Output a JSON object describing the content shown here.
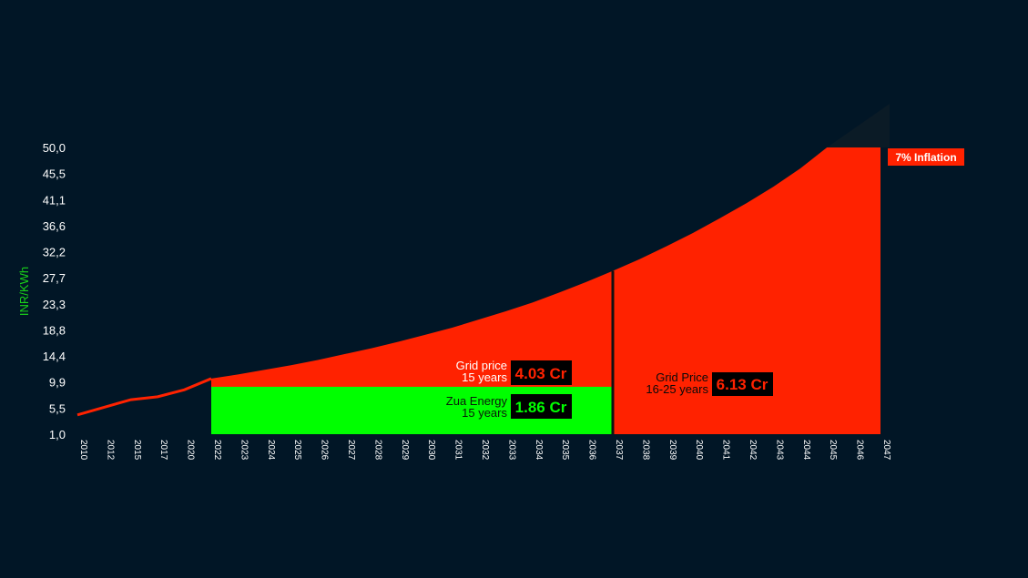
{
  "colors": {
    "background": "#011626",
    "grid_price_area": "#ff2200",
    "zua_area": "#00ff00",
    "line": "#ff2200",
    "divider": "#111111",
    "label_box": "#000000"
  },
  "chart_data": {
    "type": "area",
    "ylabel": "INR/KWh",
    "xlabel": "",
    "ylim": [
      1.0,
      50.0
    ],
    "y_ticks": [
      "1,0",
      "5,5",
      "9,9",
      "14,4",
      "18,8",
      "23,3",
      "27,7",
      "32,2",
      "36,6",
      "41,1",
      "45,5",
      "50,0"
    ],
    "x_ticks": [
      "2010",
      "2012",
      "2015",
      "2017",
      "2020",
      "2022",
      "2023",
      "2024",
      "2025",
      "2026",
      "2027",
      "2028",
      "2029",
      "2030",
      "2031",
      "2032",
      "2033",
      "2034",
      "2035",
      "2036",
      "2037",
      "2038",
      "2039",
      "2040",
      "2041",
      "2042",
      "2043",
      "2044",
      "2045",
      "2046",
      "2047"
    ],
    "historical_line": {
      "name": "",
      "values": [
        4.3,
        5.6,
        6.9,
        7.4,
        8.6,
        10.5
      ]
    },
    "grid_price_curve": {
      "name": "",
      "values": [
        10.5,
        11.2,
        12.0,
        12.8,
        13.7,
        14.7,
        15.7,
        16.8,
        18.0,
        19.2,
        20.6,
        22.0,
        23.5,
        25.2,
        27.0,
        28.9,
        30.9,
        33.1,
        35.4,
        37.9,
        40.5,
        43.3,
        46.4,
        50.0,
        50.0,
        50.0
      ]
    },
    "zua_energy_level": 9.1,
    "split_year": "2037",
    "grid_price_15": {
      "label_line1": "Grid price",
      "label_line2": "15 years",
      "value": "4.03 Cr"
    },
    "zua_energy_15": {
      "label_line1": "Zua Energy",
      "label_line2": "15 years",
      "value": "1.86 Cr"
    },
    "grid_price_16_25": {
      "label_line1": "Grid Price",
      "label_line2": "16-25 years",
      "value": "6.13 Cr"
    },
    "inflation_badge": "7% Inflation"
  }
}
